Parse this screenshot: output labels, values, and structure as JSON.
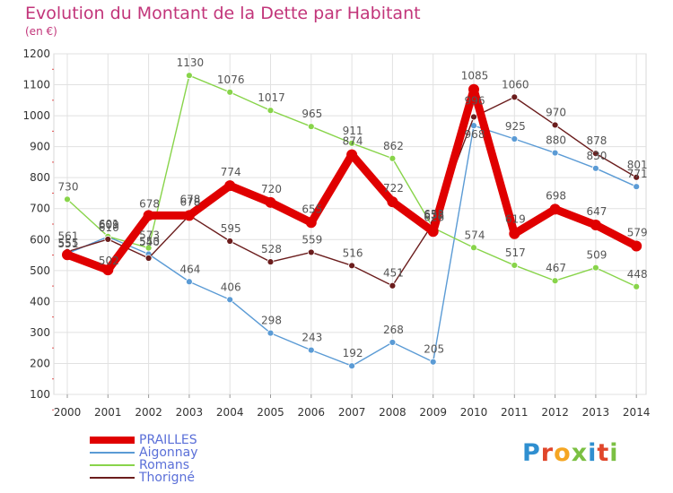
{
  "title": "Evolution du Montant de la Dette par Habitant",
  "subtitle": "(en €)",
  "logo": {
    "text": "Proxiti",
    "colors": [
      "#2f8fd0",
      "#e0462b",
      "#f5a623",
      "#7bc043",
      "#2f8fd0",
      "#e0462b",
      "#7bc043"
    ]
  },
  "chart_data": {
    "type": "line",
    "x": [
      "2000",
      "2001",
      "2002",
      "2003",
      "2004",
      "2005",
      "2006",
      "2007",
      "2008",
      "2009",
      "2010",
      "2011",
      "2012",
      "2013",
      "2014"
    ],
    "ylim": [
      100,
      1200
    ],
    "yticks": [
      "100",
      "200",
      "300",
      "400",
      "500",
      "600",
      "700",
      "800",
      "900",
      "1000",
      "1100",
      "1200"
    ],
    "grid": true,
    "legend_position": "bottom-left",
    "series": [
      {
        "name": "PRAILLES",
        "color": "#e00000",
        "emphasis": true,
        "values": [
          551,
          502,
          678,
          678,
          774,
          720,
          655,
          874,
          722,
          626,
          1085,
          619,
          698,
          647,
          579
        ]
      },
      {
        "name": "Aigonnay",
        "color": "#5b9bd5",
        "values": [
          555,
          609,
          553,
          464,
          406,
          298,
          243,
          192,
          268,
          205,
          968,
          925,
          880,
          830,
          771
        ]
      },
      {
        "name": "Romans",
        "color": "#88d44a",
        "values": [
          730,
          610,
          573,
          1130,
          1076,
          1017,
          965,
          911,
          862,
          638,
          574,
          517,
          467,
          509,
          448
        ]
      },
      {
        "name": "Thorigné",
        "color": "#6b1d1d",
        "values": [
          561,
          601,
          540,
          678,
          595,
          528,
          559,
          516,
          451,
          653,
          996,
          1060,
          970,
          878,
          801
        ]
      }
    ]
  }
}
